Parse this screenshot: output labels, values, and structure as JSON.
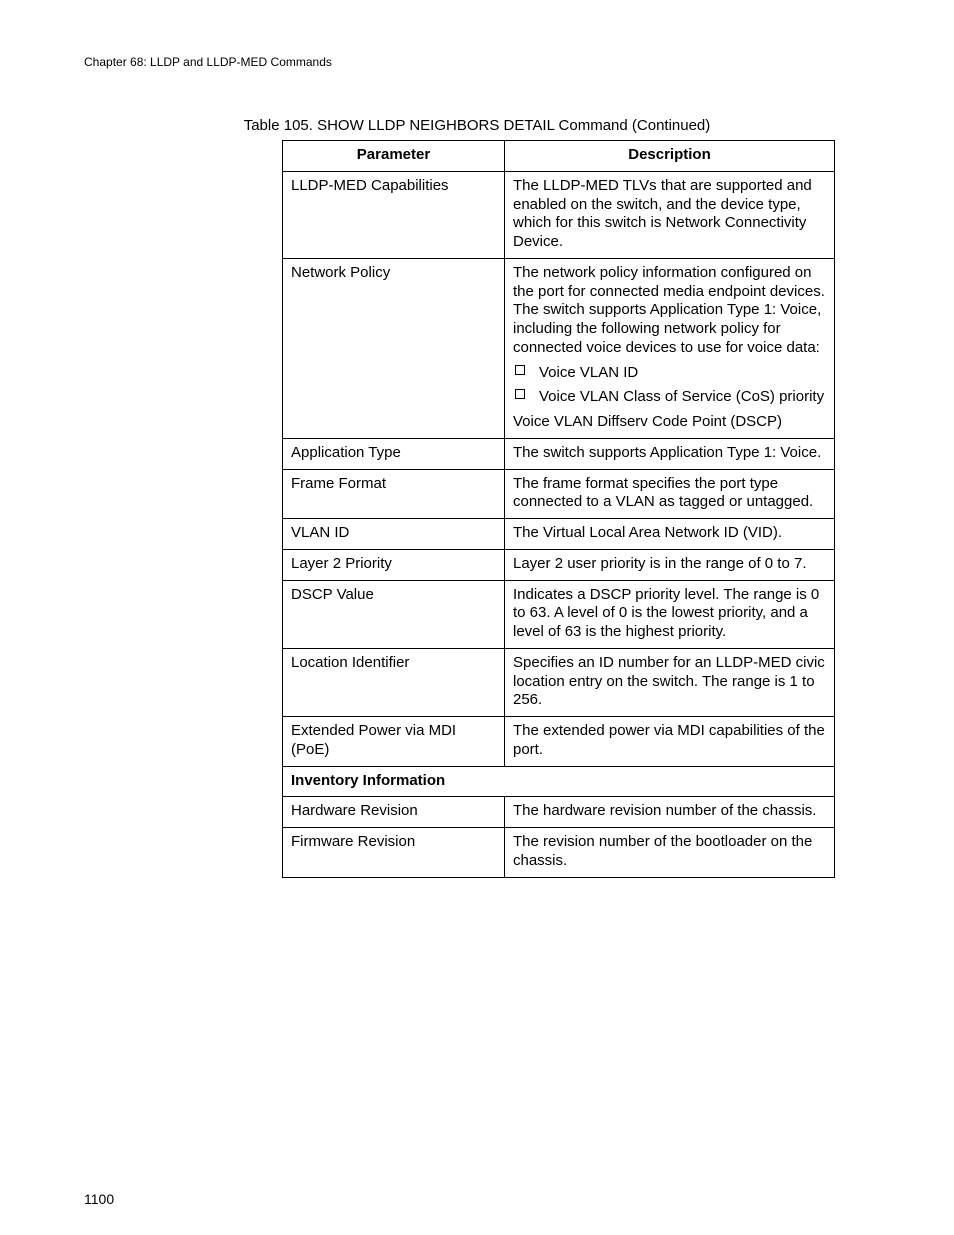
{
  "chapter_line": "Chapter 68: LLDP and LLDP-MED Commands",
  "caption": "Table 105. SHOW LLDP NEIGHBORS DETAIL Command (Continued)",
  "columns": {
    "param": "Parameter",
    "desc": "Description"
  },
  "rows": [
    {
      "param": "LLDP-MED Capabilities",
      "desc": {
        "paras": [
          "The LLDP-MED TLVs that are supported and enabled on the switch, and the device type, which for this switch is Network Connectivity Device."
        ]
      }
    },
    {
      "param": "Network Policy",
      "desc": {
        "paras": [
          "The network policy information configured on the port for connected media endpoint devices. The switch supports Application Type 1: Voice, including the following network policy for connected voice devices to use for voice data:"
        ],
        "bullets": [
          "Voice VLAN ID",
          "Voice VLAN Class of Service (CoS) priority"
        ],
        "after": [
          "Voice VLAN Diffserv Code Point (DSCP)"
        ]
      }
    },
    {
      "param": "Application Type",
      "desc": {
        "paras": [
          "The switch supports Application Type 1: Voice."
        ]
      }
    },
    {
      "param": "Frame Format",
      "desc": {
        "paras": [
          "The frame format specifies the port type connected to a VLAN as tagged or untagged."
        ]
      }
    },
    {
      "param": "VLAN ID",
      "desc": {
        "paras": [
          "The Virtual Local Area Network ID (VID)."
        ]
      }
    },
    {
      "param": "Layer 2 Priority",
      "desc": {
        "paras": [
          "Layer 2 user priority is in the range of 0 to 7."
        ]
      }
    },
    {
      "param": "DSCP Value",
      "desc": {
        "paras": [
          "Indicates a DSCP priority level. The range is 0 to 63. A level of 0 is the lowest priority, and a level of 63 is the highest priority."
        ]
      }
    },
    {
      "param": "Location Identifier",
      "desc": {
        "paras": [
          "Specifies an ID number for an LLDP-MED civic location entry on the switch. The range is 1 to 256."
        ]
      }
    },
    {
      "param": "Extended Power via MDI (PoE)",
      "desc": {
        "paras": [
          "The extended power via MDI capabilities of the port."
        ]
      }
    },
    {
      "section": "Inventory Information"
    },
    {
      "param": "Hardware Revision",
      "desc": {
        "paras": [
          "The hardware revision number of the chassis."
        ]
      }
    },
    {
      "param": "Firmware Revision",
      "desc": {
        "paras": [
          "The revision number of the bootloader on the chassis."
        ]
      }
    }
  ],
  "page_number": "1100"
}
